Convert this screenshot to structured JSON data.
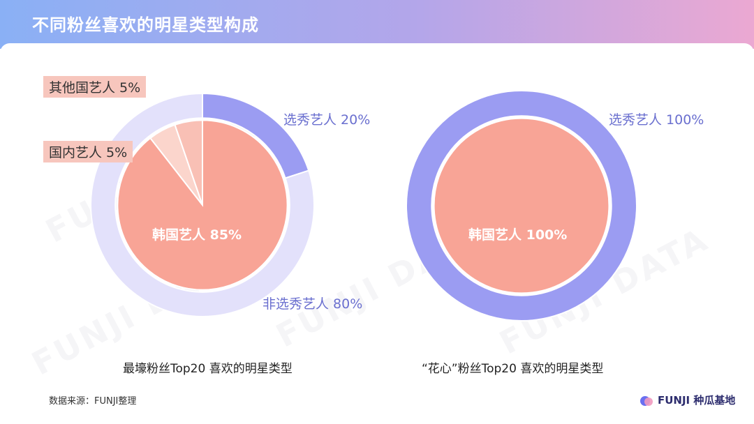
{
  "header": {
    "title": "不同粉丝喜欢的明星类型构成"
  },
  "watermark": "FUNJI DATA",
  "chart_data": [
    {
      "type": "pie",
      "caption": "最壕粉丝Top20 喜欢的明星类型",
      "outer": [
        {
          "name": "选秀艺人",
          "label": "选秀艺人 20%",
          "value": 20,
          "color": "#9b9cf2"
        },
        {
          "name": "非选秀艺人",
          "label": "非选秀艺人 80%",
          "value": 80,
          "color": "#e3e1fb"
        }
      ],
      "inner": [
        {
          "name": "韩国艺人",
          "label": "韩国艺人 85%",
          "value": 85,
          "color": "#f8a496"
        },
        {
          "name": "国内艺人",
          "label": "国内艺人 5%",
          "value": 5,
          "color": "#fbd5cc"
        },
        {
          "name": "其他国艺人",
          "label": "其他国艺人 5%",
          "value": 5,
          "color": "#f9c0b5"
        }
      ]
    },
    {
      "type": "pie",
      "caption": "“花心”粉丝Top20 喜欢的明星类型",
      "outer": [
        {
          "name": "选秀艺人",
          "label": "选秀艺人 100%",
          "value": 100,
          "color": "#9b9cf2"
        }
      ],
      "inner": [
        {
          "name": "韩国艺人",
          "label": "韩国艺人 100%",
          "value": 100,
          "color": "#f8a496"
        }
      ]
    }
  ],
  "footer": {
    "source": "数据来源：FUNJI整理",
    "brand": "FUNJI 种瓜基地"
  }
}
